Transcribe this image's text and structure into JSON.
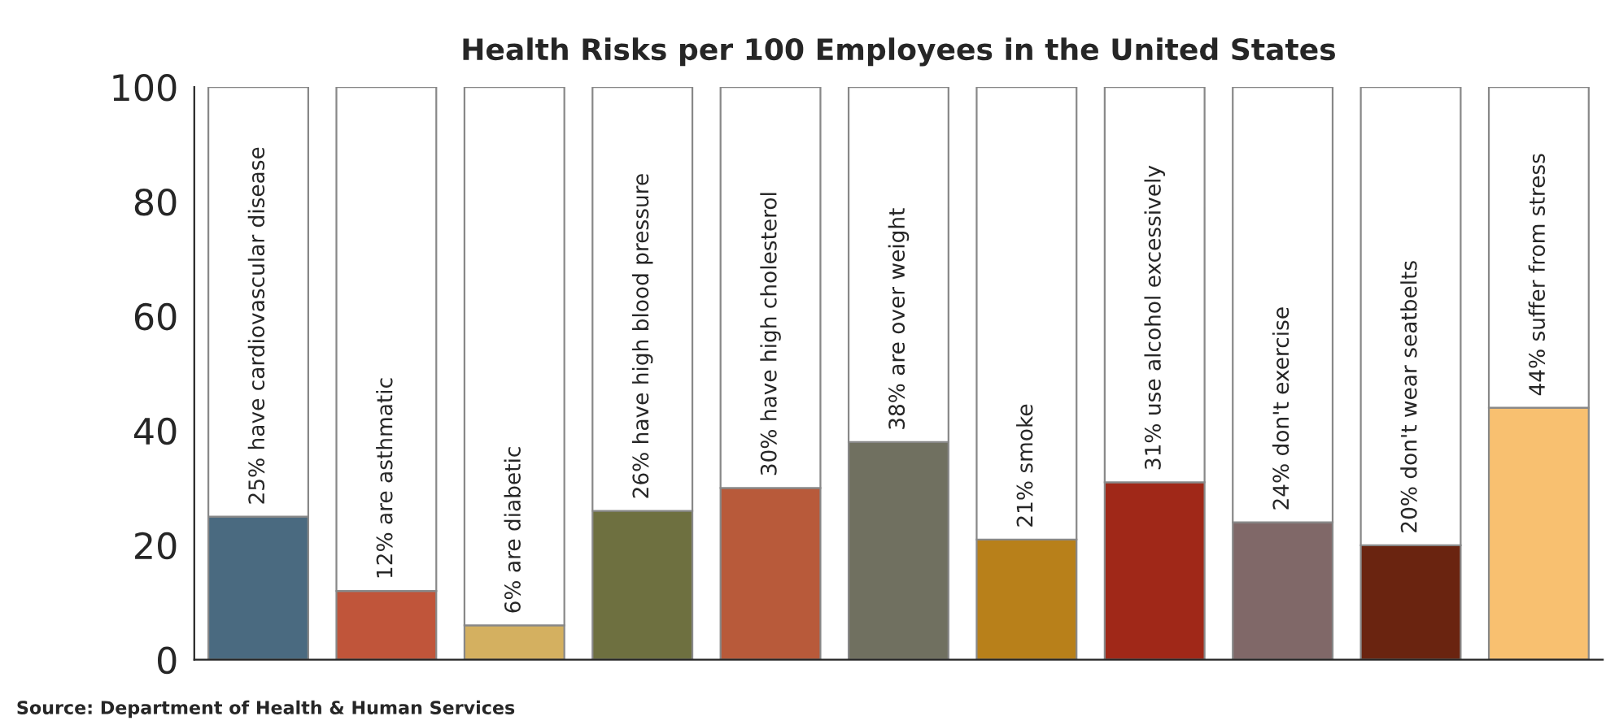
{
  "chart_data": {
    "type": "bar",
    "title": "Health Risks per 100 Employees in the United States",
    "categories": [
      null,
      null,
      null,
      null,
      null,
      null,
      null,
      null,
      null,
      null,
      null
    ],
    "stacked": true,
    "series": [
      {
        "colors": [
          "#4a6a80",
          "#c0553a",
          "#d4b060",
          "#6e7040",
          "#b85a3a",
          "#707060",
          "#b8801a",
          "#a02818",
          "#806868",
          "#6a2410",
          "#f8c070"
        ],
        "values": [
          25,
          12,
          6,
          26,
          30,
          38,
          21,
          31,
          24,
          20,
          44
        ]
      },
      {
        "color": "#ffffff",
        "values": [
          75,
          88,
          94,
          74,
          70,
          62,
          79,
          69,
          76,
          80,
          56
        ]
      }
    ],
    "ylim": [
      0,
      100
    ],
    "yticks": [
      0,
      20,
      40,
      60,
      80,
      100
    ],
    "grid": false,
    "legend": false,
    "annotations": [
      "25% have cardiovascular disease",
      "12% are asthmatic",
      "6% are diabetic",
      "26% have high blood pressure",
      "30% have high cholesterol",
      "38% are over weight",
      "21% smoke",
      "31% use alcohol excessively",
      "24% don't exercise",
      "20% don't wear seatbelts",
      "44% suffer from stress",
      "Source: Department of Health & Human Services"
    ]
  }
}
